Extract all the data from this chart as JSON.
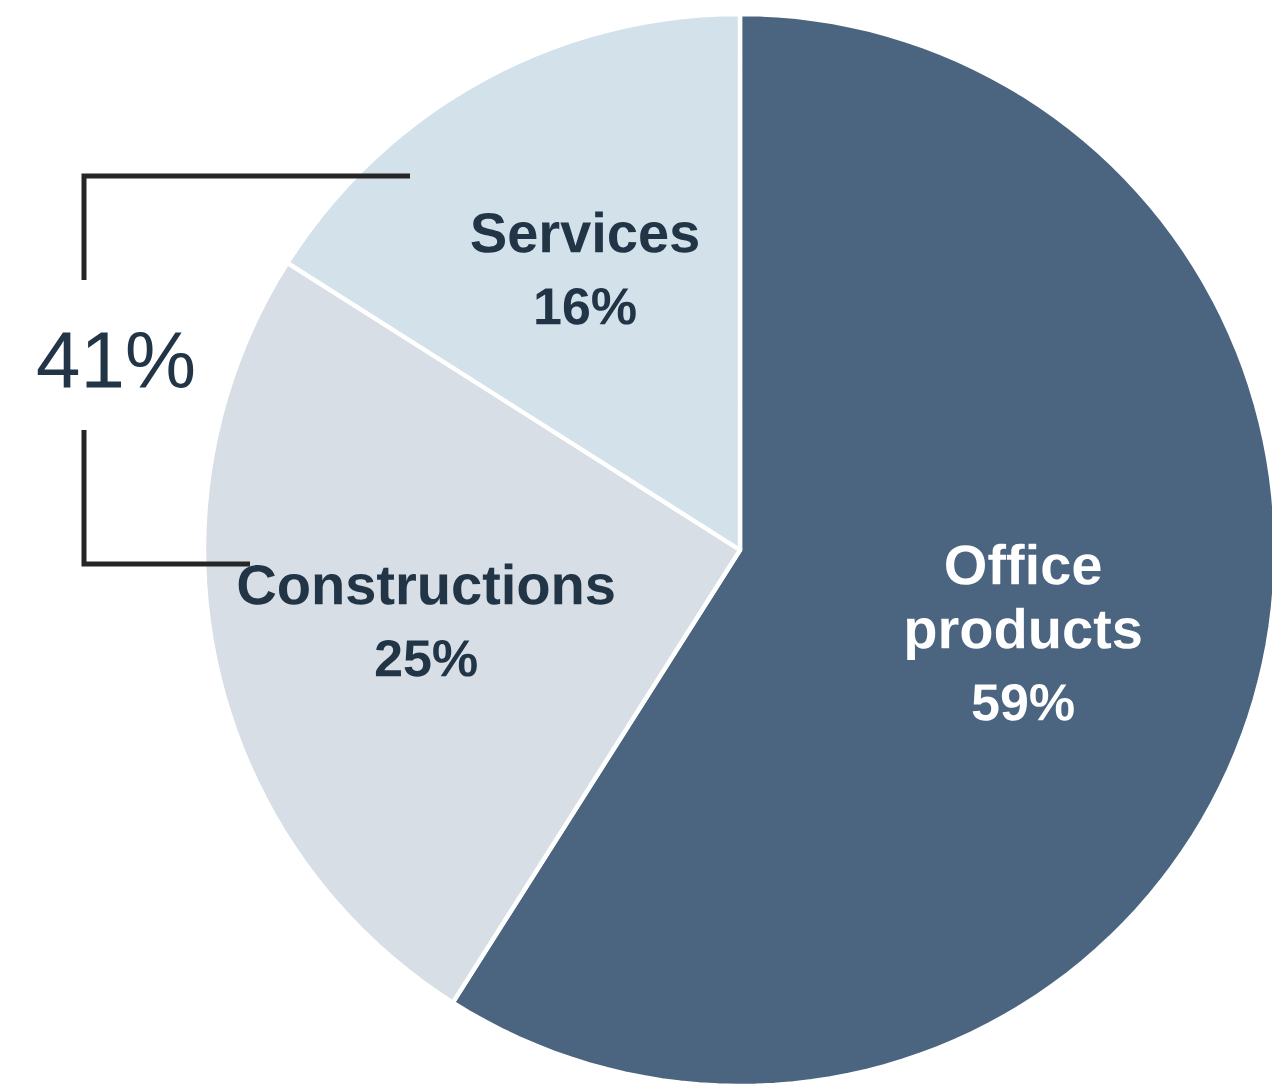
{
  "chart_data": {
    "type": "pie",
    "categories": [
      "Office products",
      "Constructions",
      "Services"
    ],
    "values": [
      59,
      25,
      16
    ],
    "value_labels": [
      "59%",
      "25%",
      "16%"
    ],
    "colors": [
      "#4b6580",
      "#d7dee5",
      "#d3e1eb"
    ],
    "annotations": [
      "41%"
    ]
  }
}
